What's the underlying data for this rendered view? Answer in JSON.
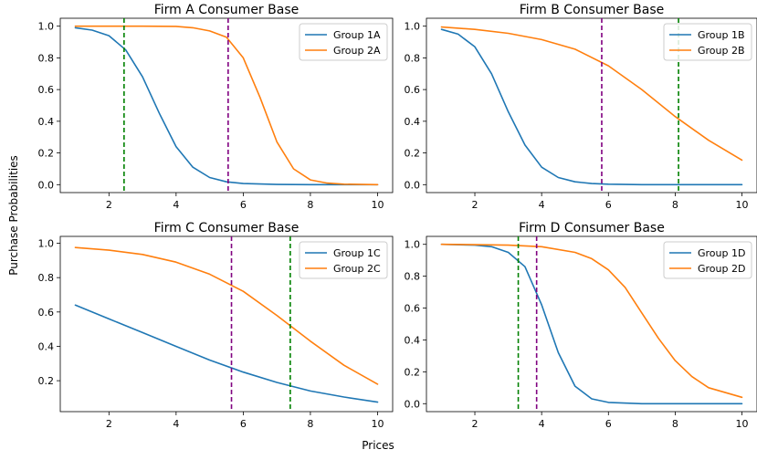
{
  "figure": {
    "xlabel": "Prices",
    "ylabel": "Purchase Probabilities"
  },
  "colors": {
    "group1": "#1f77b4",
    "group2": "#ff7f0e",
    "vline_green": "#008000",
    "vline_purple": "#800080"
  },
  "chart_data": [
    {
      "type": "line",
      "title": "Firm A Consumer Base",
      "xlim": [
        0.55,
        10.45
      ],
      "ylim": [
        -0.05,
        1.05
      ],
      "xticks": [
        2,
        4,
        6,
        8,
        10
      ],
      "yticks": [
        0.0,
        0.2,
        0.4,
        0.6,
        0.8,
        1.0
      ],
      "legend_position": "top-right",
      "series": [
        {
          "name": "Group 1A",
          "color": "#1f77b4",
          "x": [
            1,
            1.5,
            2,
            2.5,
            3,
            3.5,
            4,
            4.5,
            5,
            5.5,
            6,
            7,
            8,
            9,
            10
          ],
          "y": [
            0.99,
            0.975,
            0.94,
            0.85,
            0.68,
            0.45,
            0.24,
            0.11,
            0.045,
            0.018,
            0.007,
            0.001,
            0.0,
            0.0,
            0.0
          ]
        },
        {
          "name": "Group 2A",
          "color": "#ff7f0e",
          "x": [
            1,
            2,
            3,
            4,
            4.5,
            5,
            5.5,
            6,
            6.5,
            7,
            7.5,
            8,
            8.5,
            9,
            10
          ],
          "y": [
            1.0,
            1.0,
            1.0,
            0.999,
            0.99,
            0.97,
            0.93,
            0.8,
            0.55,
            0.27,
            0.1,
            0.03,
            0.01,
            0.003,
            0.0
          ]
        }
      ],
      "vlines": [
        {
          "x": 2.45,
          "color": "#008000"
        },
        {
          "x": 5.55,
          "color": "#800080"
        }
      ]
    },
    {
      "type": "line",
      "title": "Firm B Consumer Base",
      "xlim": [
        0.55,
        10.45
      ],
      "ylim": [
        -0.05,
        1.05
      ],
      "xticks": [
        2,
        4,
        6,
        8,
        10
      ],
      "yticks": [
        0.0,
        0.2,
        0.4,
        0.6,
        0.8,
        1.0
      ],
      "legend_position": "top-right",
      "series": [
        {
          "name": "Group 1B",
          "color": "#1f77b4",
          "x": [
            1,
            1.5,
            2,
            2.5,
            3,
            3.5,
            4,
            4.5,
            5,
            5.5,
            6,
            7,
            8,
            9,
            10
          ],
          "y": [
            0.98,
            0.95,
            0.87,
            0.7,
            0.46,
            0.25,
            0.11,
            0.045,
            0.018,
            0.007,
            0.003,
            0.0,
            0.0,
            0.0,
            0.0
          ]
        },
        {
          "name": "Group 2B",
          "color": "#ff7f0e",
          "x": [
            1,
            2,
            3,
            4,
            5,
            6,
            7,
            8,
            9,
            10
          ],
          "y": [
            0.995,
            0.98,
            0.955,
            0.915,
            0.855,
            0.75,
            0.6,
            0.43,
            0.28,
            0.155
          ]
        }
      ],
      "vlines": [
        {
          "x": 8.1,
          "color": "#008000"
        },
        {
          "x": 5.8,
          "color": "#800080"
        }
      ]
    },
    {
      "type": "line",
      "title": "Firm C Consumer Base",
      "xlim": [
        0.55,
        10.45
      ],
      "ylim": [
        0.02,
        1.04
      ],
      "xticks": [
        2,
        4,
        6,
        8,
        10
      ],
      "yticks": [
        0.2,
        0.4,
        0.6,
        0.8,
        1.0
      ],
      "legend_position": "top-right",
      "series": [
        {
          "name": "Group 1C",
          "color": "#1f77b4",
          "x": [
            1,
            2,
            3,
            4,
            5,
            6,
            7,
            8,
            9,
            10
          ],
          "y": [
            0.64,
            0.56,
            0.48,
            0.4,
            0.32,
            0.25,
            0.19,
            0.14,
            0.105,
            0.075
          ]
        },
        {
          "name": "Group 2C",
          "color": "#ff7f0e",
          "x": [
            1,
            2,
            3,
            4,
            5,
            6,
            7,
            8,
            9,
            10
          ],
          "y": [
            0.975,
            0.96,
            0.935,
            0.89,
            0.82,
            0.72,
            0.58,
            0.43,
            0.29,
            0.18
          ]
        }
      ],
      "vlines": [
        {
          "x": 7.4,
          "color": "#008000"
        },
        {
          "x": 5.65,
          "color": "#800080"
        }
      ]
    },
    {
      "type": "line",
      "title": "Firm D Consumer Base",
      "xlim": [
        0.55,
        10.45
      ],
      "ylim": [
        -0.05,
        1.05
      ],
      "xticks": [
        2,
        4,
        6,
        8,
        10
      ],
      "yticks": [
        0.0,
        0.2,
        0.4,
        0.6,
        0.8,
        1.0
      ],
      "legend_position": "top-right",
      "series": [
        {
          "name": "Group 1D",
          "color": "#1f77b4",
          "x": [
            1,
            2,
            2.5,
            3,
            3.5,
            4,
            4.5,
            5,
            5.5,
            6,
            7,
            8,
            9,
            10
          ],
          "y": [
            1.0,
            0.995,
            0.985,
            0.95,
            0.86,
            0.62,
            0.32,
            0.11,
            0.03,
            0.008,
            0.0,
            0.0,
            0.0,
            0.0
          ]
        },
        {
          "name": "Group 2D",
          "color": "#ff7f0e",
          "x": [
            1,
            2,
            3,
            4,
            5,
            5.5,
            6,
            6.5,
            7,
            7.5,
            8,
            8.5,
            9,
            10
          ],
          "y": [
            1.0,
            0.998,
            0.995,
            0.985,
            0.95,
            0.91,
            0.84,
            0.73,
            0.57,
            0.41,
            0.27,
            0.17,
            0.1,
            0.04
          ]
        }
      ],
      "vlines": [
        {
          "x": 3.3,
          "color": "#008000"
        },
        {
          "x": 3.85,
          "color": "#800080"
        }
      ]
    }
  ]
}
